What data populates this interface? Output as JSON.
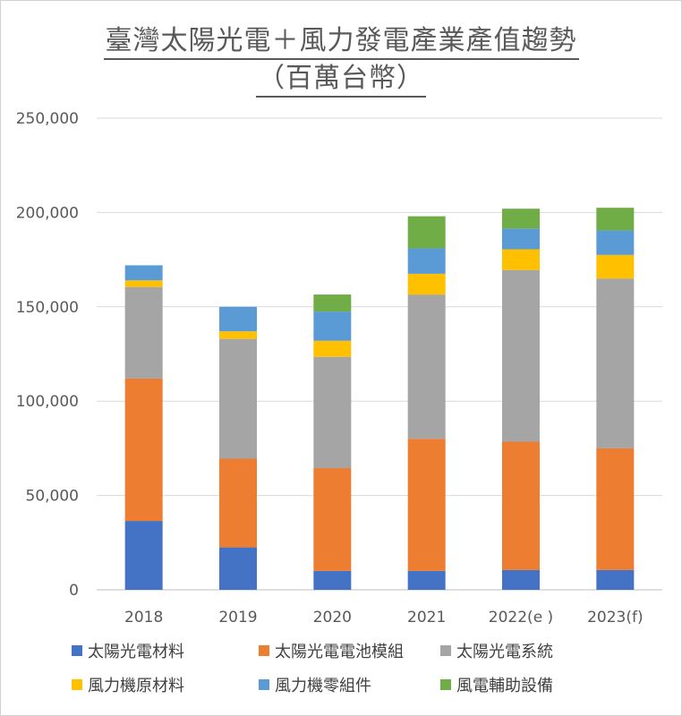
{
  "title_line1": "臺灣太陽光電＋風力發電產業產值趨勢",
  "title_line2": "（百萬台幣）",
  "chart_data": {
    "type": "bar",
    "stacked": true,
    "categories": [
      "2018",
      "2019",
      "2020",
      "2021",
      "2022(e )",
      "2023(f)"
    ],
    "ylim": [
      0,
      250000
    ],
    "yticks": [
      0,
      50000,
      100000,
      150000,
      200000,
      250000
    ],
    "ytick_labels": [
      "0",
      "50,000",
      "100,000",
      "150,000",
      "200,000",
      "250,000"
    ],
    "grid": true,
    "legend_position": "bottom",
    "series": [
      {
        "name": "太陽光電材料",
        "color": "#4472C4",
        "values": [
          36500,
          22500,
          10000,
          10000,
          10500,
          10500
        ]
      },
      {
        "name": "太陽光電電池模組",
        "color": "#ED7D31",
        "values": [
          75500,
          47000,
          54500,
          70000,
          68000,
          64500
        ]
      },
      {
        "name": "太陽光電系統",
        "color": "#A5A5A5",
        "values": [
          48500,
          63500,
          59000,
          76500,
          91000,
          90000
        ]
      },
      {
        "name": "風力機原材料",
        "color": "#FFC000",
        "values": [
          3500,
          4000,
          8500,
          11000,
          11000,
          12500
        ]
      },
      {
        "name": "風力機零組件",
        "color": "#5B9BD5",
        "values": [
          8000,
          13000,
          15500,
          13500,
          11000,
          13000
        ]
      },
      {
        "name": "風電輔助設備",
        "color": "#70AD47",
        "values": [
          0,
          0,
          9000,
          17000,
          10500,
          12000
        ]
      }
    ]
  }
}
